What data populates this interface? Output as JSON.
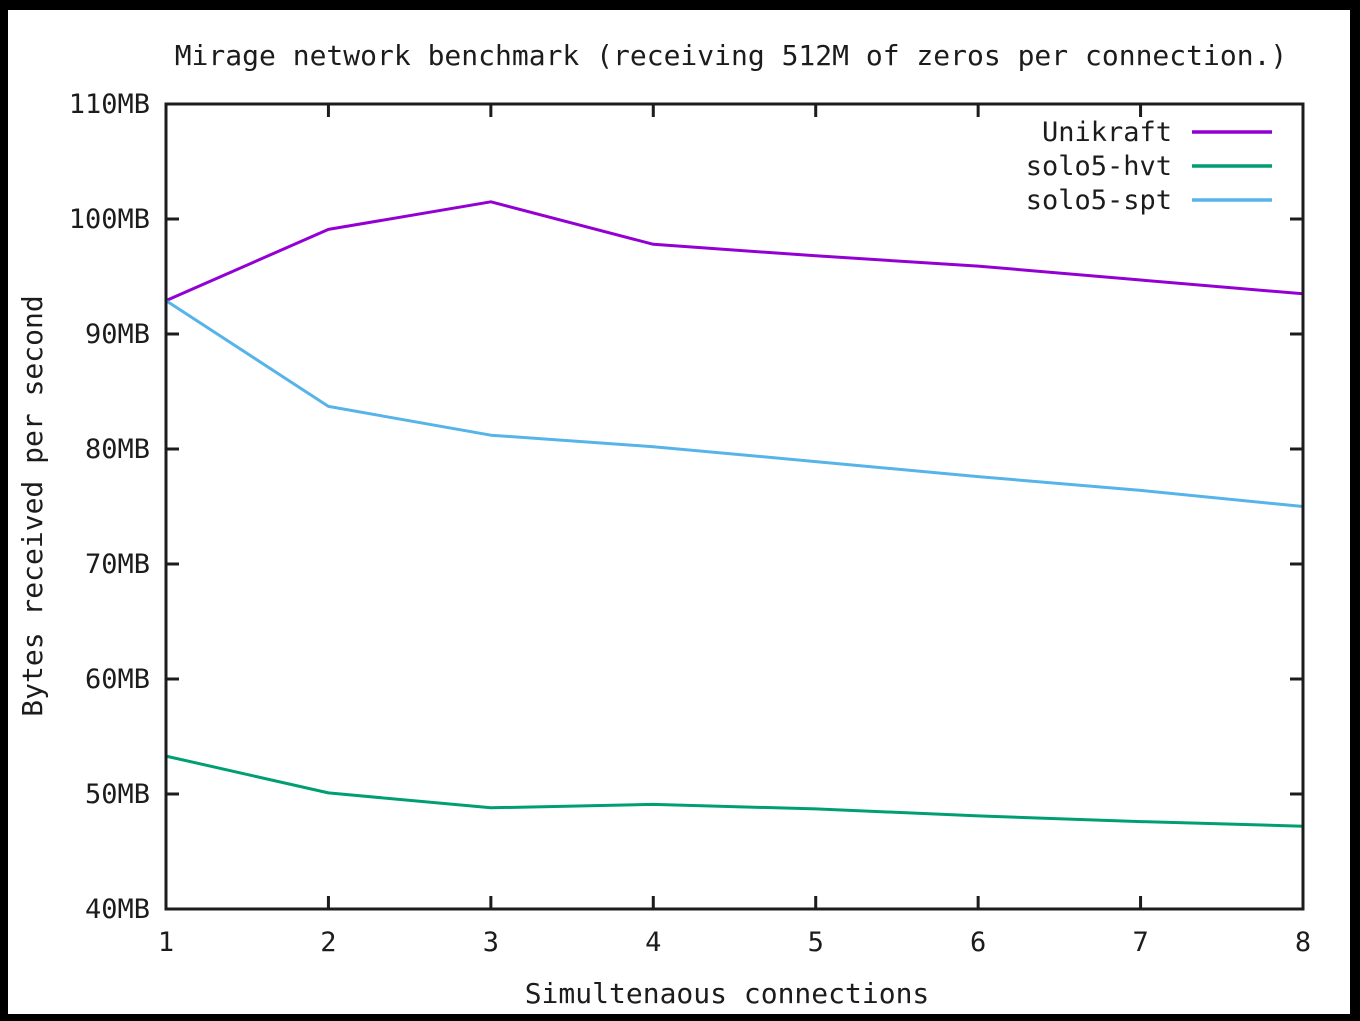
{
  "chart_data": {
    "type": "line",
    "title": "Mirage network benchmark (receiving 512M of zeros per connection.)",
    "xlabel": "Simultenaous connections",
    "ylabel": "Bytes received per second",
    "x": [
      1,
      2,
      3,
      4,
      5,
      6,
      7,
      8
    ],
    "xlim": [
      1,
      8
    ],
    "ylim": [
      40,
      110
    ],
    "xtick_labels": [
      "1",
      "2",
      "3",
      "4",
      "5",
      "6",
      "7",
      "8"
    ],
    "ytick_values": [
      40,
      50,
      60,
      70,
      80,
      90,
      100,
      110
    ],
    "ytick_labels": [
      "40MB",
      "50MB",
      "60MB",
      "70MB",
      "80MB",
      "90MB",
      "100MB",
      "110MB"
    ],
    "grid": false,
    "legend_position": "top-right-inside",
    "series": [
      {
        "name": "Unikraft",
        "color": "#9400d3",
        "values": [
          92.9,
          99.1,
          101.5,
          97.8,
          96.8,
          95.9,
          94.7,
          93.5
        ]
      },
      {
        "name": "solo5-hvt",
        "color": "#009e73",
        "values": [
          53.3,
          50.1,
          48.8,
          49.1,
          48.7,
          48.1,
          47.6,
          47.2
        ]
      },
      {
        "name": "solo5-spt",
        "color": "#56b4e9",
        "values": [
          92.9,
          83.7,
          81.2,
          80.2,
          78.9,
          77.6,
          76.4,
          75.0
        ]
      }
    ]
  },
  "frame": {
    "outer_background": "#000000",
    "plot_background": "#ffffff",
    "border_color": "#1c1c1c",
    "text_color": "#1c1c1c"
  }
}
